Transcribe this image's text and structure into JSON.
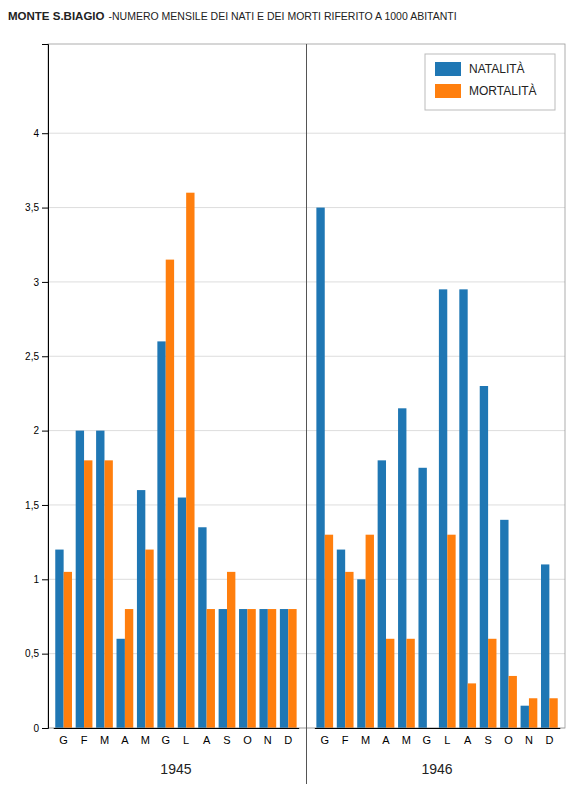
{
  "chart_data": {
    "type": "bar",
    "title": "MONTE S.BIAGIO",
    "subtitle": "-NUMERO MENSILE DEI NATI E DEI MORTI RIFERITO A 1000 ABITANTI",
    "categories": [
      "G",
      "F",
      "M",
      "A",
      "M",
      "G",
      "L",
      "A",
      "S",
      "O",
      "N",
      "D",
      "G",
      "F",
      "M",
      "A",
      "M",
      "G",
      "L",
      "A",
      "S",
      "O",
      "N",
      "D"
    ],
    "groups": [
      "1945",
      "1946"
    ],
    "series": [
      {
        "name": "NATALITÀ",
        "values": [
          1.2,
          2.0,
          2.0,
          0.6,
          1.6,
          2.6,
          1.55,
          1.35,
          0.8,
          0.8,
          0.8,
          0.8,
          3.5,
          1.2,
          1.0,
          1.8,
          2.15,
          1.75,
          2.95,
          2.95,
          2.3,
          1.4,
          0.15,
          1.1
        ]
      },
      {
        "name": "MORTALITÀ",
        "values": [
          1.05,
          1.8,
          1.8,
          0.8,
          1.2,
          3.15,
          3.6,
          0.8,
          1.05,
          0.8,
          0.8,
          0.8,
          1.3,
          1.05,
          1.3,
          0.6,
          0.6,
          0.0,
          1.3,
          0.3,
          0.6,
          0.35,
          0.2,
          0.2
        ]
      }
    ],
    "ylim": [
      0,
      4.6
    ],
    "yticks": [
      0,
      {
        "value": 0.5,
        "label": "0,5"
      },
      1,
      {
        "value": 1.5,
        "label": "1,5"
      },
      2,
      {
        "value": 2.5,
        "label": "2,5"
      },
      3,
      {
        "value": 3.5,
        "label": "3,5"
      },
      4
    ],
    "grid": true,
    "legend": "upper right"
  }
}
